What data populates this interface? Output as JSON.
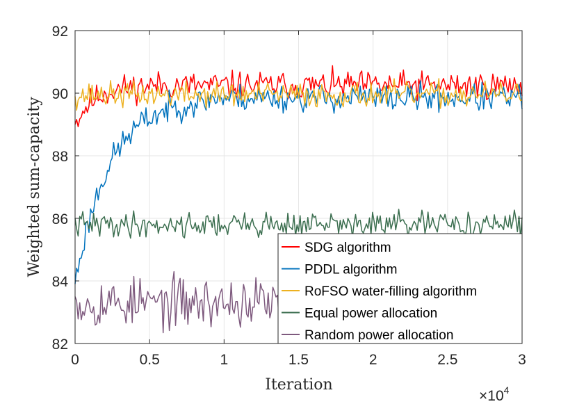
{
  "chart_data": {
    "type": "line",
    "title": "",
    "xlabel": "Iteration",
    "ylabel": "Weighted sum-capacity",
    "x_multiplier": {
      "base": "×10",
      "exponent": "4"
    },
    "xlim": [
      0,
      3
    ],
    "ylim": [
      82,
      92
    ],
    "xticks": [
      0,
      0.5,
      1,
      1.5,
      2,
      2.5,
      3
    ],
    "xtick_labels": [
      "0",
      "0.5",
      "1",
      "1.5",
      "2",
      "2.5",
      "3"
    ],
    "yticks": [
      82,
      84,
      86,
      88,
      90,
      92
    ],
    "ytick_labels": [
      "82",
      "84",
      "86",
      "88",
      "90",
      "92"
    ],
    "grid": true,
    "legend_position": "bottom-right",
    "series": [
      {
        "name": "SDG algorithm",
        "color": "#ff0000",
        "x_end": 3.0,
        "start": 89.0,
        "rise": 0.5,
        "mean": 90.25,
        "amp": 0.22,
        "seed": 11
      },
      {
        "name": "PDDL algorithm",
        "color": "#0072bd",
        "x_end": 3.0,
        "start": 83.9,
        "rise": 0.9,
        "mean": 89.85,
        "amp": 0.22,
        "seed": 23
      },
      {
        "name": "RoFSO water-filling algorithm",
        "color": "#edb120",
        "x_end": 3.0,
        "start": 89.9,
        "rise": 0.2,
        "mean": 89.95,
        "amp": 0.2,
        "seed": 37
      },
      {
        "name": "Equal power allocation",
        "color": "#3b6e4f",
        "x_end": 3.0,
        "start": 86.0,
        "rise": 0.0,
        "mean": 85.8,
        "amp": 0.2,
        "seed": 41
      },
      {
        "name": "Random power allocation",
        "color": "#7e5a7e",
        "x_end": 1.4,
        "start": 83.5,
        "rise": 0.0,
        "mean": 83.3,
        "amp": 0.4,
        "seed": 53
      }
    ]
  }
}
